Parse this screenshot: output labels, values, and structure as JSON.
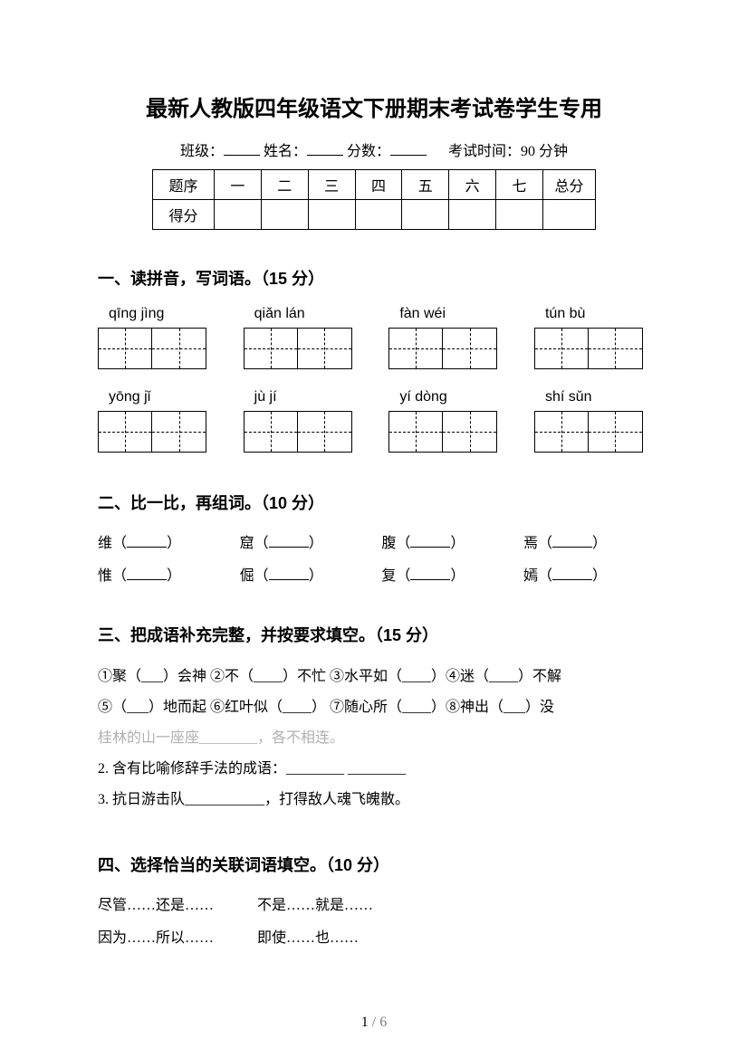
{
  "title": "最新人教版四年级语文下册期末考试卷学生专用",
  "header": {
    "class_label": "班级：",
    "name_label": "姓名：",
    "score_label": "分数：",
    "time_label": "考试时间：90 分钟"
  },
  "score_table": {
    "row_labels": [
      "题序",
      "得分"
    ],
    "columns": [
      "一",
      "二",
      "三",
      "四",
      "五",
      "六",
      "七",
      "总分"
    ]
  },
  "section1": {
    "heading": "一、读拼音，写词语。（15 分）",
    "rows": [
      [
        "qīng  jìng",
        "qiǎn  lán",
        "fàn  wéi",
        "tún  bù"
      ],
      [
        "yōng  jǐ",
        "jù  jí",
        "yí  dòng",
        "shí  sǔn"
      ]
    ]
  },
  "section2": {
    "heading": "二、比一比，再组词。（10 分）",
    "rows": [
      [
        "维",
        "窟",
        "腹",
        "焉"
      ],
      [
        "惟",
        "倔",
        "复",
        "嫣"
      ]
    ]
  },
  "section3": {
    "heading": "三、把成语补充完整，并按要求填空。（15 分）",
    "lines": [
      {
        "text": "①聚（___）会神  ②不（____）不忙  ③水平如（____）④迷（____）不解"
      },
      {
        "text": "⑤（___）地而起  ⑥红叶似（____）  ⑦随心所（____）⑧神出（___）没"
      },
      {
        "text": "桂林的山一座座________，各不相连。",
        "faded": true
      },
      {
        "text": "2. 含有比喻修辞手法的成语：________  ________"
      },
      {
        "text": "3. 抗日游击队___________，打得敌人魂飞魄散。"
      }
    ]
  },
  "section4": {
    "heading": "四、选择恰当的关联词语填空。（10 分）",
    "options": [
      "尽管……还是……",
      "不是……就是……",
      "因为……所以……",
      "即使……也……"
    ]
  },
  "page": {
    "current": "1",
    "total": "6"
  }
}
